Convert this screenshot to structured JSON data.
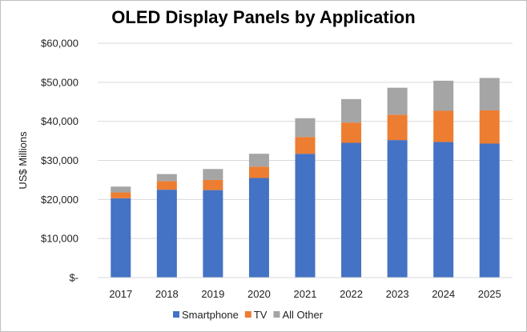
{
  "chart_data": {
    "type": "bar",
    "stacked": true,
    "title": "OLED Display Panels by Application",
    "xlabel": "",
    "ylabel": "US$ Millions",
    "categories": [
      "2017",
      "2018",
      "2019",
      "2020",
      "2021",
      "2022",
      "2023",
      "2024",
      "2025"
    ],
    "ylim": [
      0,
      60000
    ],
    "yticks": [
      0,
      10000,
      20000,
      30000,
      40000,
      50000,
      60000
    ],
    "ytick_labels": [
      "$-",
      "$10,000",
      "$20,000",
      "$30,000",
      "$40,000",
      "$50,000",
      "$60,000"
    ],
    "grid": true,
    "legend_position": "bottom",
    "series": [
      {
        "name": "Smartphone",
        "color": "#4472c4",
        "values": [
          20300,
          22500,
          22400,
          25500,
          31700,
          34500,
          35200,
          34700,
          34300
        ]
      },
      {
        "name": "TV",
        "color": "#ed7d31",
        "values": [
          1500,
          2200,
          2600,
          2900,
          4300,
          5200,
          6500,
          8000,
          8500
        ]
      },
      {
        "name": "All Other",
        "color": "#a5a5a5",
        "values": [
          1500,
          1800,
          2800,
          3300,
          4800,
          6000,
          6900,
          7700,
          8300
        ]
      }
    ]
  }
}
